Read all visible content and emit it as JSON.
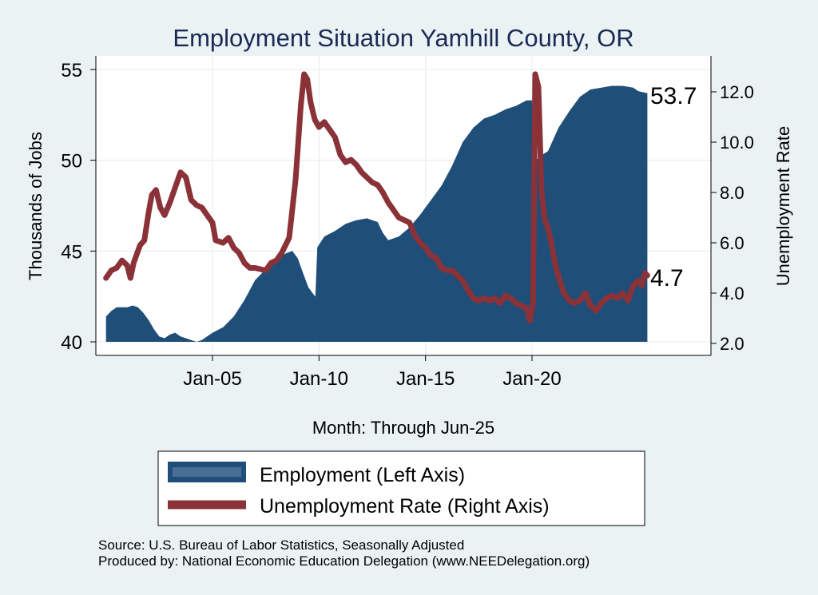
{
  "chart_data": {
    "type": "area+line",
    "title": "Employment Situation Yamhill  County, OR",
    "xlabel": "Month: Through Jun-25",
    "ylabel_left": "Thousands of Jobs",
    "ylabel_right": "Unemployment Rate",
    "x_ticks": [
      "Jan-05",
      "Jan-10",
      "Jan-15",
      "Jan-20"
    ],
    "y_left_ticks": [
      "40",
      "45",
      "50",
      "55"
    ],
    "y_right_ticks": [
      "2.0",
      "4.0",
      "6.0",
      "8.0",
      "10.0",
      "12.0"
    ],
    "ylim_left": [
      40,
      55.6
    ],
    "ylim_right": [
      2.0,
      13.0
    ],
    "xlim": [
      2000.0,
      2025.4167
    ],
    "grid": true,
    "legend_position": "bottom",
    "series": [
      {
        "name": "Employment (Left Axis)",
        "axis": "left",
        "kind": "area",
        "color": "#1f4e79",
        "end_label": "53.7",
        "points": [
          [
            2000.0,
            41.4
          ],
          [
            2000.25,
            41.7
          ],
          [
            2000.5,
            41.9
          ],
          [
            2001.0,
            41.9
          ],
          [
            2001.25,
            42.0
          ],
          [
            2001.5,
            41.9
          ],
          [
            2001.75,
            41.6
          ],
          [
            2002.0,
            41.2
          ],
          [
            2002.25,
            40.7
          ],
          [
            2002.5,
            40.3
          ],
          [
            2002.75,
            40.2
          ],
          [
            2003.0,
            40.4
          ],
          [
            2003.25,
            40.5
          ],
          [
            2003.5,
            40.3
          ],
          [
            2003.75,
            40.2
          ],
          [
            2004.0,
            40.1
          ],
          [
            2004.25,
            40.0
          ],
          [
            2004.5,
            40.1
          ],
          [
            2004.75,
            40.3
          ],
          [
            2005.0,
            40.5
          ],
          [
            2005.5,
            40.8
          ],
          [
            2006.0,
            41.4
          ],
          [
            2006.5,
            42.3
          ],
          [
            2007.0,
            43.4
          ],
          [
            2007.5,
            44.0
          ],
          [
            2008.0,
            44.6
          ],
          [
            2008.5,
            44.9
          ],
          [
            2008.75,
            45.0
          ],
          [
            2009.0,
            44.6
          ],
          [
            2009.25,
            43.8
          ],
          [
            2009.5,
            43.0
          ],
          [
            2009.75,
            42.6
          ],
          [
            2009.83,
            42.5
          ],
          [
            2009.92,
            45.2
          ],
          [
            2010.25,
            45.8
          ],
          [
            2010.75,
            46.1
          ],
          [
            2011.25,
            46.5
          ],
          [
            2011.75,
            46.7
          ],
          [
            2012.25,
            46.8
          ],
          [
            2012.75,
            46.6
          ],
          [
            2013.0,
            46.0
          ],
          [
            2013.25,
            45.6
          ],
          [
            2013.75,
            45.8
          ],
          [
            2014.25,
            46.3
          ],
          [
            2014.75,
            47.0
          ],
          [
            2015.25,
            47.8
          ],
          [
            2015.75,
            48.6
          ],
          [
            2016.25,
            49.7
          ],
          [
            2016.75,
            51.0
          ],
          [
            2017.25,
            51.8
          ],
          [
            2017.75,
            52.3
          ],
          [
            2018.25,
            52.5
          ],
          [
            2018.75,
            52.8
          ],
          [
            2019.25,
            53.0
          ],
          [
            2019.75,
            53.3
          ],
          [
            2020.0,
            53.3
          ],
          [
            2020.2,
            50.0
          ],
          [
            2020.35,
            50.2
          ],
          [
            2020.75,
            50.5
          ],
          [
            2021.25,
            51.8
          ],
          [
            2021.75,
            52.7
          ],
          [
            2022.25,
            53.5
          ],
          [
            2022.75,
            53.9
          ],
          [
            2023.25,
            54.0
          ],
          [
            2023.75,
            54.1
          ],
          [
            2024.25,
            54.1
          ],
          [
            2024.75,
            54.0
          ],
          [
            2025.0,
            53.8
          ],
          [
            2025.4167,
            53.7
          ]
        ]
      },
      {
        "name": "Unemployment Rate (Right Axis)",
        "axis": "right",
        "kind": "line",
        "color": "#8b3238",
        "end_label": "4.7",
        "points": [
          [
            2000.0,
            4.6
          ],
          [
            2000.25,
            4.9
          ],
          [
            2000.5,
            5.0
          ],
          [
            2000.75,
            5.3
          ],
          [
            2001.0,
            5.1
          ],
          [
            2001.15,
            4.6
          ],
          [
            2001.3,
            5.2
          ],
          [
            2001.6,
            5.9
          ],
          [
            2001.8,
            6.1
          ],
          [
            2002.0,
            7.2
          ],
          [
            2002.15,
            7.9
          ],
          [
            2002.35,
            8.1
          ],
          [
            2002.55,
            7.4
          ],
          [
            2002.75,
            7.1
          ],
          [
            2003.0,
            7.6
          ],
          [
            2003.25,
            8.2
          ],
          [
            2003.5,
            8.8
          ],
          [
            2003.75,
            8.6
          ],
          [
            2004.0,
            7.7
          ],
          [
            2004.25,
            7.5
          ],
          [
            2004.5,
            7.4
          ],
          [
            2004.75,
            7.1
          ],
          [
            2005.0,
            6.8
          ],
          [
            2005.15,
            6.1
          ],
          [
            2005.5,
            6.0
          ],
          [
            2005.75,
            6.2
          ],
          [
            2006.0,
            5.8
          ],
          [
            2006.25,
            5.6
          ],
          [
            2006.5,
            5.2
          ],
          [
            2006.75,
            5.0
          ],
          [
            2007.0,
            5.0
          ],
          [
            2007.5,
            4.9
          ],
          [
            2007.75,
            5.2
          ],
          [
            2008.0,
            5.3
          ],
          [
            2008.25,
            5.6
          ],
          [
            2008.6,
            6.2
          ],
          [
            2008.9,
            8.5
          ],
          [
            2009.15,
            11.5
          ],
          [
            2009.3,
            12.7
          ],
          [
            2009.45,
            12.5
          ],
          [
            2009.6,
            11.6
          ],
          [
            2009.8,
            10.9
          ],
          [
            2010.0,
            10.6
          ],
          [
            2010.25,
            10.8
          ],
          [
            2010.5,
            10.5
          ],
          [
            2010.75,
            10.2
          ],
          [
            2011.0,
            9.5
          ],
          [
            2011.25,
            9.2
          ],
          [
            2011.5,
            9.3
          ],
          [
            2011.75,
            9.1
          ],
          [
            2012.0,
            8.8
          ],
          [
            2012.25,
            8.6
          ],
          [
            2012.5,
            8.4
          ],
          [
            2012.75,
            8.3
          ],
          [
            2013.0,
            8.0
          ],
          [
            2013.25,
            7.6
          ],
          [
            2013.5,
            7.3
          ],
          [
            2013.75,
            7.0
          ],
          [
            2014.0,
            6.9
          ],
          [
            2014.25,
            6.8
          ],
          [
            2014.5,
            6.3
          ],
          [
            2014.75,
            6.0
          ],
          [
            2015.0,
            5.8
          ],
          [
            2015.25,
            5.5
          ],
          [
            2015.5,
            5.4
          ],
          [
            2015.75,
            5.0
          ],
          [
            2016.0,
            4.9
          ],
          [
            2016.25,
            4.9
          ],
          [
            2016.5,
            4.7
          ],
          [
            2016.75,
            4.5
          ],
          [
            2017.0,
            4.1
          ],
          [
            2017.25,
            3.8
          ],
          [
            2017.5,
            3.7
          ],
          [
            2017.75,
            3.8
          ],
          [
            2018.0,
            3.7
          ],
          [
            2018.25,
            3.8
          ],
          [
            2018.5,
            3.6
          ],
          [
            2018.75,
            3.9
          ],
          [
            2019.0,
            3.8
          ],
          [
            2019.25,
            3.6
          ],
          [
            2019.5,
            3.5
          ],
          [
            2019.75,
            3.4
          ],
          [
            2019.9,
            2.9
          ],
          [
            2020.05,
            3.6
          ],
          [
            2020.15,
            12.7
          ],
          [
            2020.3,
            12.2
          ],
          [
            2020.45,
            8.0
          ],
          [
            2020.6,
            6.9
          ],
          [
            2020.75,
            6.6
          ],
          [
            2020.9,
            6.0
          ],
          [
            2021.1,
            5.1
          ],
          [
            2021.3,
            4.5
          ],
          [
            2021.5,
            4.0
          ],
          [
            2021.75,
            3.7
          ],
          [
            2022.0,
            3.6
          ],
          [
            2022.25,
            3.7
          ],
          [
            2022.5,
            4.0
          ],
          [
            2022.75,
            3.5
          ],
          [
            2023.0,
            3.3
          ],
          [
            2023.25,
            3.6
          ],
          [
            2023.5,
            3.8
          ],
          [
            2023.75,
            3.9
          ],
          [
            2024.0,
            3.8
          ],
          [
            2024.25,
            4.0
          ],
          [
            2024.5,
            3.7
          ],
          [
            2024.75,
            4.3
          ],
          [
            2025.0,
            4.5
          ],
          [
            2025.15,
            4.3
          ],
          [
            2025.3,
            4.8
          ],
          [
            2025.4167,
            4.7
          ]
        ]
      }
    ]
  },
  "legend": {
    "employment": "Employment (Left Axis)",
    "unemployment": "Unemployment Rate (Right Axis)"
  },
  "footer": {
    "source": "Source: U.S. Bureau of Labor Statistics, Seasonally Adjusted",
    "produced": "Produced by: National Economic Education Delegation (www.NEEDelegation.org)"
  }
}
